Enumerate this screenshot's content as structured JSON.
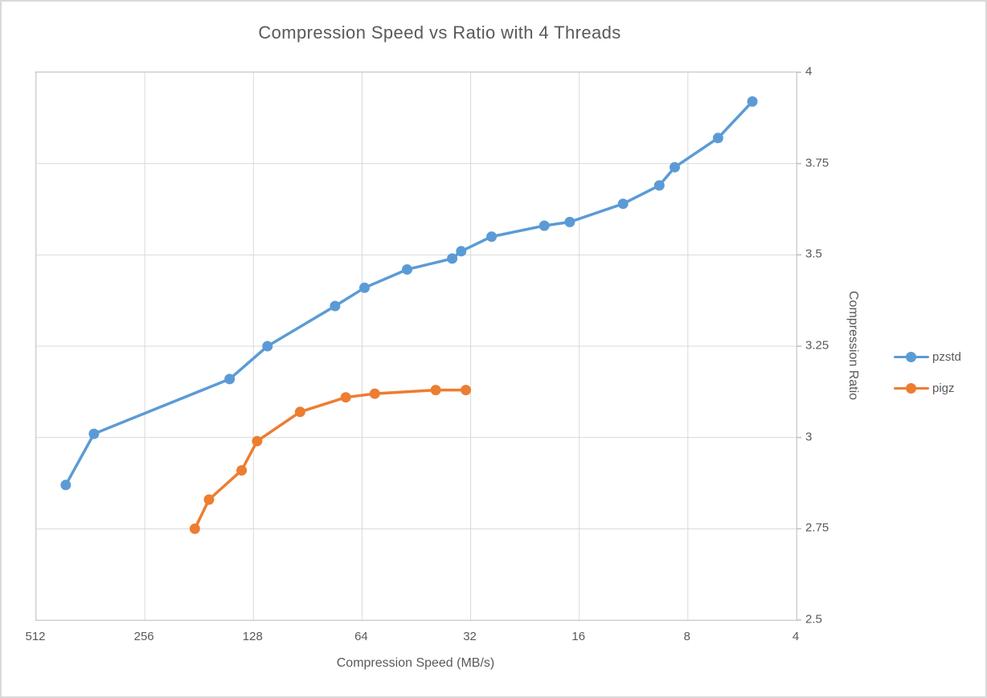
{
  "chart_data": {
    "type": "line",
    "title": "Compression Speed vs Ratio with 4 Threads",
    "xlabel": "Compression Speed (MB/s)",
    "ylabel": "Compression Ratio",
    "x_scale": "log2-reversed",
    "x_ticks": [
      512,
      256,
      128,
      64,
      32,
      16,
      8,
      4
    ],
    "x_range": [
      512,
      4
    ],
    "y_ticks": [
      4,
      3.75,
      3.5,
      3.25,
      3,
      2.75,
      2.5
    ],
    "y_range": [
      2.5,
      4
    ],
    "grid": true,
    "legend_position": "right",
    "series": [
      {
        "name": "pzstd",
        "color": "#5B9BD5",
        "points": [
          [
            424,
            2.87
          ],
          [
            354,
            3.01
          ],
          [
            149,
            3.16
          ],
          [
            117,
            3.25
          ],
          [
            76,
            3.36
          ],
          [
            63,
            3.41
          ],
          [
            48,
            3.46
          ],
          [
            36,
            3.49
          ],
          [
            34,
            3.51
          ],
          [
            28,
            3.55
          ],
          [
            20,
            3.58
          ],
          [
            17,
            3.59
          ],
          [
            12.1,
            3.64
          ],
          [
            9.6,
            3.69
          ],
          [
            8.7,
            3.74
          ],
          [
            6.6,
            3.82
          ],
          [
            5.3,
            3.92
          ]
        ]
      },
      {
        "name": "pigz",
        "color": "#ED7D31",
        "points": [
          [
            186,
            2.75
          ],
          [
            170,
            2.83
          ],
          [
            138,
            2.91
          ],
          [
            125,
            2.99
          ],
          [
            95,
            3.07
          ],
          [
            71,
            3.11
          ],
          [
            59,
            3.12
          ],
          [
            40,
            3.13
          ],
          [
            33,
            3.13
          ]
        ]
      }
    ]
  },
  "colors": {
    "text": "#595959",
    "gridline": "#D9D9D9",
    "plot_border": "#BFBFBF",
    "frame_border": "#D9D9D9",
    "background": "#FFFFFF"
  }
}
